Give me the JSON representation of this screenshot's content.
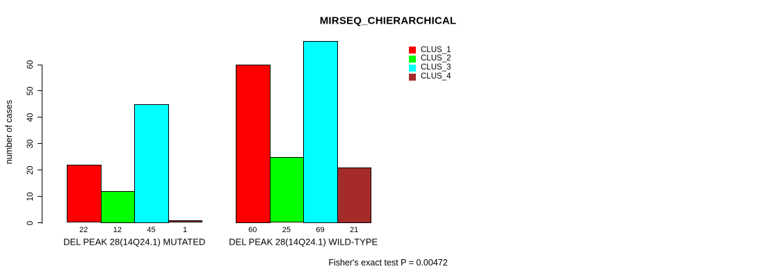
{
  "chart_data": {
    "type": "bar",
    "title": "MIRSEQ_CHIERARCHICAL",
    "ylabel": "number of cases",
    "categories": [
      "DEL PEAK 28(14Q24.1) MUTATED",
      "DEL PEAK 28(14Q24.1) WILD-TYPE"
    ],
    "series": [
      {
        "name": "CLUS_1",
        "color": "#FF0000",
        "values": [
          22,
          60
        ]
      },
      {
        "name": "CLUS_2",
        "color": "#00FF00",
        "values": [
          12,
          25
        ]
      },
      {
        "name": "CLUS_3",
        "color": "#00FFFF",
        "values": [
          45,
          69
        ]
      },
      {
        "name": "CLUS_4",
        "color": "#A52A2A",
        "values": [
          1,
          21
        ]
      }
    ],
    "yticks": [
      0,
      10,
      20,
      30,
      40,
      50,
      60
    ],
    "ylim": [
      0,
      69
    ],
    "bar_value_labels_shown": true,
    "grid": false,
    "legend_position": "top-right",
    "annotation": "Fisher's exact test P = 0.00472",
    "axis_color": "#000000",
    "background_color": "#FFFFFF"
  }
}
